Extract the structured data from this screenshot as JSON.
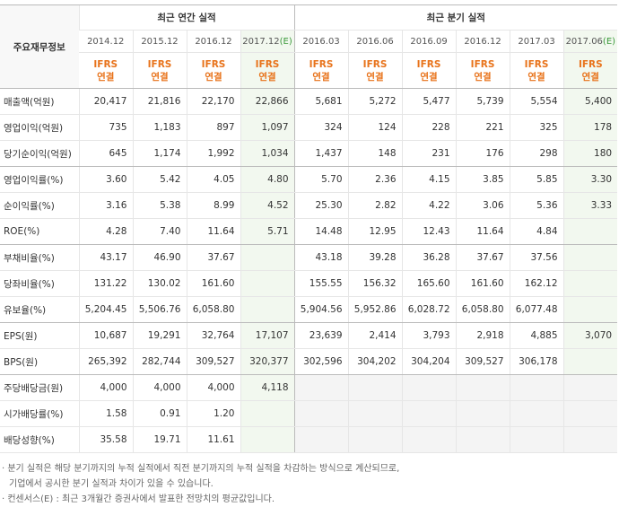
{
  "header": {
    "corner": "주요재무정보",
    "groups": [
      {
        "title": "최근 연간 실적",
        "span": 4
      },
      {
        "title": "최근 분기 실적",
        "span": 6
      }
    ],
    "columns": [
      {
        "date": "2014.12",
        "basis": [
          "IFRS",
          "연결"
        ]
      },
      {
        "date": "2015.12",
        "basis": [
          "IFRS",
          "연결"
        ]
      },
      {
        "date": "2016.12",
        "basis": [
          "IFRS",
          "연결"
        ]
      },
      {
        "date": "2017.12",
        "estimate": "(E)",
        "basis": [
          "IFRS",
          "연결"
        ]
      },
      {
        "date": "2016.03",
        "basis": [
          "IFRS",
          "연결"
        ]
      },
      {
        "date": "2016.06",
        "basis": [
          "IFRS",
          "연결"
        ]
      },
      {
        "date": "2016.09",
        "basis": [
          "IFRS",
          "연결"
        ]
      },
      {
        "date": "2016.12",
        "basis": [
          "IFRS",
          "연결"
        ]
      },
      {
        "date": "2017.03",
        "basis": [
          "IFRS",
          "연결"
        ]
      },
      {
        "date": "2017.06",
        "estimate": "(E)",
        "basis": [
          "IFRS",
          "연결"
        ]
      }
    ]
  },
  "table": {
    "rows": [
      {
        "label": "매출액(억원)",
        "values": [
          "20,417",
          "21,816",
          "22,170",
          "22,866",
          "5,681",
          "5,272",
          "5,477",
          "5,739",
          "5,554",
          "5,400"
        ]
      },
      {
        "label": "영업이익(억원)",
        "values": [
          "735",
          "1,183",
          "897",
          "1,097",
          "324",
          "124",
          "228",
          "221",
          "325",
          "178"
        ]
      },
      {
        "label": "당기순이익(억원)",
        "values": [
          "645",
          "1,174",
          "1,992",
          "1,034",
          "1,437",
          "148",
          "231",
          "176",
          "298",
          "180"
        ]
      },
      {
        "label": "영업이익률(%)",
        "values": [
          "3.60",
          "5.42",
          "4.05",
          "4.80",
          "5.70",
          "2.36",
          "4.15",
          "3.85",
          "5.85",
          "3.30"
        ]
      },
      {
        "label": "순이익률(%)",
        "values": [
          "3.16",
          "5.38",
          "8.99",
          "4.52",
          "25.30",
          "2.82",
          "4.22",
          "3.06",
          "5.36",
          "3.33"
        ]
      },
      {
        "label": "ROE(%)",
        "values": [
          "4.28",
          "7.40",
          "11.64",
          "5.71",
          "14.48",
          "12.95",
          "12.43",
          "11.64",
          "4.84",
          null
        ]
      },
      {
        "label": "부채비율(%)",
        "values": [
          "43.17",
          "46.90",
          "37.67",
          null,
          "43.18",
          "39.28",
          "36.28",
          "37.67",
          "37.56",
          null
        ]
      },
      {
        "label": "당좌비율(%)",
        "values": [
          "131.22",
          "130.02",
          "161.60",
          null,
          "155.55",
          "156.32",
          "165.60",
          "161.60",
          "162.12",
          null
        ]
      },
      {
        "label": "유보율(%)",
        "values": [
          "5,204.45",
          "5,506.76",
          "6,058.80",
          null,
          "5,904.56",
          "5,952.86",
          "6,028.72",
          "6,058.80",
          "6,077.48",
          null
        ]
      },
      {
        "label": "EPS(원)",
        "values": [
          "10,687",
          "19,291",
          "32,764",
          "17,107",
          "23,639",
          "2,414",
          "3,793",
          "2,918",
          "4,885",
          "3,070"
        ]
      },
      {
        "label": "BPS(원)",
        "values": [
          "265,392",
          "282,744",
          "309,527",
          "320,377",
          "302,596",
          "304,202",
          "304,204",
          "309,527",
          "306,178",
          null
        ]
      },
      {
        "label": "주당배당금(원)",
        "values": [
          "4,000",
          "4,000",
          "4,000",
          "4,118",
          null,
          null,
          null,
          null,
          null,
          null
        ]
      },
      {
        "label": "시가배당률(%)",
        "values": [
          "1.58",
          "0.91",
          "1.20",
          null,
          null,
          null,
          null,
          null,
          null,
          null
        ]
      },
      {
        "label": "배당성향(%)",
        "values": [
          "35.58",
          "19.71",
          "11.61",
          null,
          null,
          null,
          null,
          null,
          null,
          null
        ]
      }
    ]
  },
  "notes": [
    [
      "· 분기 실적은 해당 분기까지의 누적 실적에서 직전 분기까지의 누적 실적을 차감하는 방식으로 계산되므로,",
      "기업에서 공시한 분기 실적과 차이가 있을 수 있습니다."
    ],
    [
      "· 컨센서스(E) : 최근 3개월간 증권사에서 발표한 전망치의 평균값입니다."
    ]
  ]
}
